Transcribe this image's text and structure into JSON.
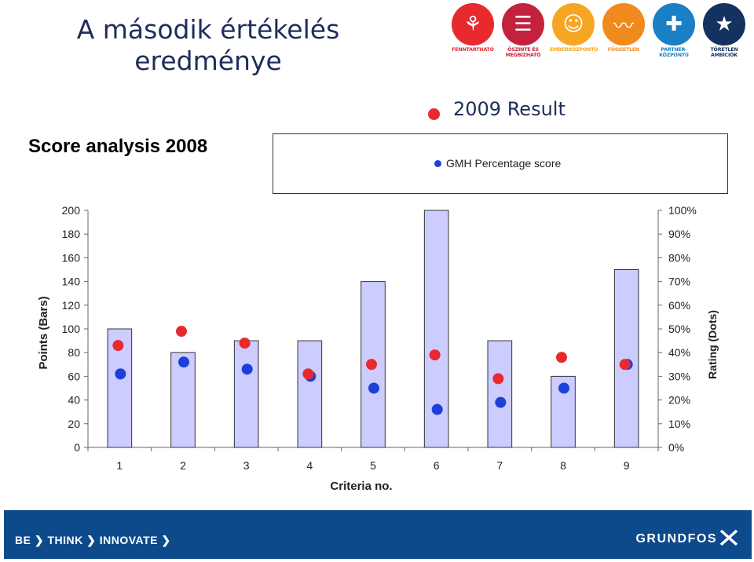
{
  "slide": {
    "title_line1": "A második értékelés",
    "title_line2": "eredménye",
    "result_label": "2009 Result"
  },
  "badges": [
    {
      "caption": "FENNTARTHATÓ",
      "color": "#e8292e",
      "icon": "sprout-icon",
      "glyph": "⚘"
    },
    {
      "caption": "ŐSZINTE ÉS\nMEGBÍZHATÓ",
      "color": "#c4213d",
      "icon": "speech-bubble-icon",
      "glyph": "☰"
    },
    {
      "caption": "EMBERKÖZPONTÚ",
      "color": "#f5a623",
      "icon": "people-icon",
      "glyph": "☺"
    },
    {
      "caption": "FÜGGETLEN",
      "color": "#f08a1c",
      "icon": "birds-icon",
      "glyph": "〰"
    },
    {
      "caption": "PARTNER-\nKÖZPONTÚ",
      "color": "#1a7fc4",
      "icon": "puzzle-icon",
      "glyph": "✚"
    },
    {
      "caption": "TÖRETLEN\nAMBÍCIÓK",
      "color": "#14325f",
      "icon": "star-icon",
      "glyph": "★"
    }
  ],
  "chart_heading": "Score analysis 2008",
  "legend": {
    "label": "GMH Percentage score"
  },
  "colors": {
    "bar_fill": "#ccccff",
    "bar_stroke": "#333333",
    "dot_2008": "#1f3fd8",
    "dot_2009": "#e8292e"
  },
  "chart_data": {
    "type": "bar",
    "categories": [
      "1",
      "2",
      "3",
      "4",
      "5",
      "6",
      "7",
      "8",
      "9"
    ],
    "xlabel": "Criteria no.",
    "ylabel": "Points (Bars)",
    "y2label": "Rating (Dots)",
    "ylim": [
      0,
      200
    ],
    "y2lim": [
      0,
      100
    ],
    "yticks": [
      "0",
      "20",
      "40",
      "60",
      "80",
      "100",
      "120",
      "140",
      "160",
      "180",
      "200"
    ],
    "y2ticks": [
      "0%",
      "10%",
      "20%",
      "30%",
      "40%",
      "50%",
      "60%",
      "70%",
      "80%",
      "90%",
      "100%"
    ],
    "series": [
      {
        "name": "Points",
        "kind": "bar",
        "axis": "left",
        "values": [
          100,
          80,
          90,
          90,
          140,
          200,
          90,
          60,
          150
        ]
      },
      {
        "name": "GMH Percentage score",
        "kind": "dot",
        "axis": "right",
        "values": [
          31,
          36,
          33,
          30,
          25,
          16,
          19,
          25,
          35
        ]
      },
      {
        "name": "2009 Result",
        "kind": "dot",
        "axis": "right",
        "values": [
          43,
          49,
          44,
          31,
          35,
          39,
          29,
          38,
          35
        ]
      }
    ]
  },
  "footer": {
    "tagline": "BE ❯ THINK ❯ INNOVATE ❯",
    "brand": "GRUNDFOS"
  }
}
